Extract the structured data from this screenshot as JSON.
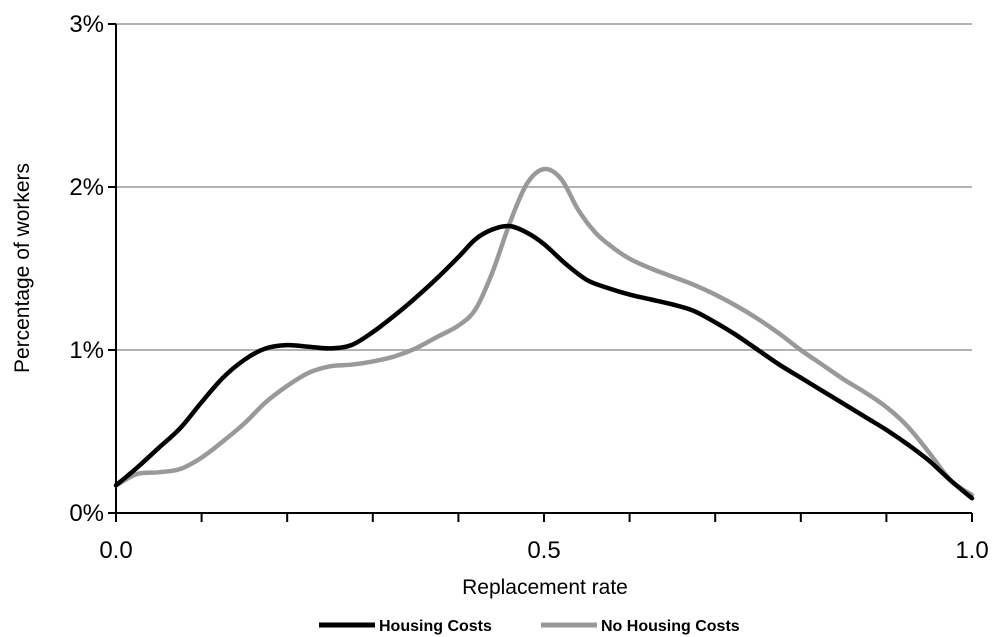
{
  "chart_data": {
    "type": "line",
    "title": "",
    "xlabel": "Replacement rate",
    "ylabel": "Percentage of workers",
    "xlim": [
      0,
      1
    ],
    "ylim": [
      0,
      3
    ],
    "x_ticks": [
      0,
      0.5,
      1
    ],
    "x_tick_labels": [
      "0.0",
      "0.5",
      "1.0"
    ],
    "y_ticks": [
      0,
      1,
      2,
      3
    ],
    "y_tick_labels": [
      "0%",
      "1%",
      "2%",
      "3%"
    ],
    "minor_x_ticks": [
      0.1,
      0.2,
      0.3,
      0.4,
      0.6,
      0.7,
      0.8,
      0.9
    ],
    "grid": "horizontal",
    "legend_position": "bottom",
    "series": [
      {
        "name": "Housing Costs",
        "color": "#000000",
        "points": [
          [
            0.0,
            0.17
          ],
          [
            0.025,
            0.28
          ],
          [
            0.05,
            0.4
          ],
          [
            0.075,
            0.52
          ],
          [
            0.1,
            0.68
          ],
          [
            0.125,
            0.83
          ],
          [
            0.15,
            0.94
          ],
          [
            0.175,
            1.01
          ],
          [
            0.2,
            1.03
          ],
          [
            0.225,
            1.02
          ],
          [
            0.25,
            1.01
          ],
          [
            0.275,
            1.03
          ],
          [
            0.3,
            1.11
          ],
          [
            0.325,
            1.21
          ],
          [
            0.35,
            1.32
          ],
          [
            0.375,
            1.44
          ],
          [
            0.4,
            1.57
          ],
          [
            0.42,
            1.68
          ],
          [
            0.44,
            1.74
          ],
          [
            0.46,
            1.76
          ],
          [
            0.48,
            1.72
          ],
          [
            0.5,
            1.65
          ],
          [
            0.525,
            1.53
          ],
          [
            0.55,
            1.43
          ],
          [
            0.575,
            1.38
          ],
          [
            0.6,
            1.34
          ],
          [
            0.625,
            1.31
          ],
          [
            0.65,
            1.28
          ],
          [
            0.675,
            1.24
          ],
          [
            0.7,
            1.17
          ],
          [
            0.725,
            1.09
          ],
          [
            0.75,
            1.0
          ],
          [
            0.775,
            0.91
          ],
          [
            0.8,
            0.83
          ],
          [
            0.825,
            0.75
          ],
          [
            0.85,
            0.67
          ],
          [
            0.875,
            0.59
          ],
          [
            0.9,
            0.51
          ],
          [
            0.925,
            0.42
          ],
          [
            0.95,
            0.32
          ],
          [
            0.975,
            0.2
          ],
          [
            1.0,
            0.09
          ]
        ]
      },
      {
        "name": "No Housing Costs",
        "color": "#999999",
        "points": [
          [
            0.0,
            0.17
          ],
          [
            0.025,
            0.24
          ],
          [
            0.05,
            0.25
          ],
          [
            0.075,
            0.27
          ],
          [
            0.1,
            0.34
          ],
          [
            0.125,
            0.44
          ],
          [
            0.15,
            0.55
          ],
          [
            0.175,
            0.68
          ],
          [
            0.2,
            0.78
          ],
          [
            0.225,
            0.86
          ],
          [
            0.25,
            0.9
          ],
          [
            0.275,
            0.91
          ],
          [
            0.3,
            0.93
          ],
          [
            0.325,
            0.96
          ],
          [
            0.35,
            1.01
          ],
          [
            0.375,
            1.08
          ],
          [
            0.4,
            1.15
          ],
          [
            0.42,
            1.25
          ],
          [
            0.44,
            1.48
          ],
          [
            0.46,
            1.78
          ],
          [
            0.48,
            2.02
          ],
          [
            0.5,
            2.11
          ],
          [
            0.52,
            2.05
          ],
          [
            0.54,
            1.86
          ],
          [
            0.56,
            1.72
          ],
          [
            0.58,
            1.63
          ],
          [
            0.6,
            1.56
          ],
          [
            0.625,
            1.5
          ],
          [
            0.65,
            1.45
          ],
          [
            0.675,
            1.4
          ],
          [
            0.7,
            1.34
          ],
          [
            0.725,
            1.27
          ],
          [
            0.75,
            1.19
          ],
          [
            0.775,
            1.1
          ],
          [
            0.8,
            1.0
          ],
          [
            0.825,
            0.91
          ],
          [
            0.85,
            0.82
          ],
          [
            0.875,
            0.74
          ],
          [
            0.9,
            0.65
          ],
          [
            0.925,
            0.53
          ],
          [
            0.95,
            0.37
          ],
          [
            0.975,
            0.2
          ],
          [
            1.0,
            0.11
          ]
        ]
      }
    ]
  }
}
